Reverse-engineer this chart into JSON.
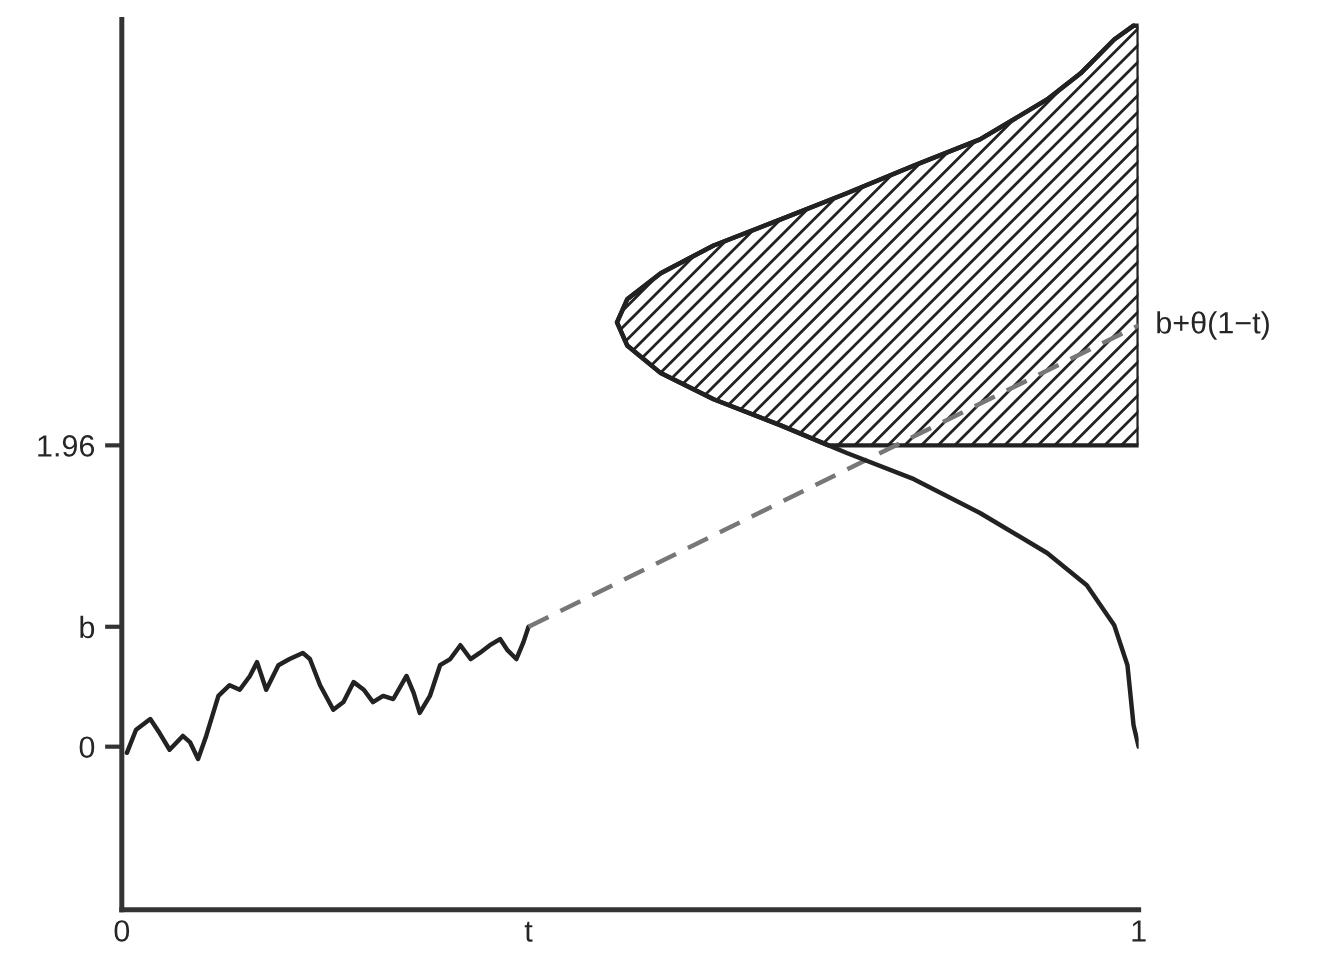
{
  "chart_data": {
    "type": "line",
    "xlim": [
      0,
      1
    ],
    "ylim": [
      -1.06,
      4.73
    ],
    "xticks": [
      0,
      {
        "value": 0.4,
        "label": "t"
      },
      1
    ],
    "yticks": [
      0,
      {
        "value": 0.78,
        "label": "b"
      },
      1.96
    ],
    "grid": false,
    "legend": false,
    "marker": "none",
    "annotations": [
      {
        "text": "b+θ(1−t)",
        "x": 1,
        "y": 2.74
      }
    ],
    "series": [
      {
        "color": "#222222",
        "line_style": "solid",
        "x": [
          0.005,
          0.014,
          0.028,
          0.037,
          0.047,
          0.06,
          0.067,
          0.075,
          0.083,
          0.095,
          0.106,
          0.116,
          0.126,
          0.133,
          0.142,
          0.154,
          0.165,
          0.178,
          0.185,
          0.195,
          0.208,
          0.218,
          0.228,
          0.238,
          0.247,
          0.257,
          0.267,
          0.28,
          0.287,
          0.293,
          0.303,
          0.313,
          0.323,
          0.333,
          0.343,
          0.352,
          0.362,
          0.372,
          0.379,
          0.388,
          0.395,
          0.4
        ],
        "values": [
          -0.04,
          0.11,
          0.18,
          0.09,
          -0.02,
          0.07,
          0.03,
          -0.08,
          0.07,
          0.33,
          0.4,
          0.37,
          0.46,
          0.55,
          0.37,
          0.53,
          0.57,
          0.61,
          0.57,
          0.4,
          0.24,
          0.29,
          0.42,
          0.37,
          0.29,
          0.33,
          0.31,
          0.46,
          0.35,
          0.22,
          0.33,
          0.53,
          0.57,
          0.66,
          0.57,
          0.61,
          0.66,
          0.7,
          0.63,
          0.57,
          0.68,
          0.78
        ]
      },
      {
        "color": "#777777",
        "line_style": "dashed",
        "x": [
          0.4,
          1
        ],
        "values": [
          0.78,
          2.74
        ]
      },
      {
        "type": "area",
        "color": "#222222",
        "x": [
          0.695,
          0.648,
          0.582,
          0.53,
          0.497,
          0.487,
          0.497,
          0.53,
          0.582,
          0.648,
          0.713,
          0.779,
          0.844,
          0.91,
          0.943,
          0.976,
          0.995,
          1.0,
          1.0
        ],
        "values": [
          1.96,
          2.09,
          2.26,
          2.43,
          2.61,
          2.76,
          2.91,
          3.08,
          3.26,
          3.43,
          3.6,
          3.78,
          3.95,
          4.21,
          4.38,
          4.6,
          4.69,
          4.69,
          1.96
        ]
      },
      {
        "color": "#222222",
        "line_style": "solid",
        "x": [
          0.995,
          0.976,
          0.943,
          0.91,
          0.844,
          0.779,
          0.713,
          0.648,
          0.582,
          0.53,
          0.497,
          0.487,
          0.497,
          0.53,
          0.582,
          0.648,
          0.713,
          0.779,
          0.844,
          0.91,
          0.949,
          0.976,
          0.989,
          0.995,
          1.0
        ],
        "values": [
          4.69,
          4.6,
          4.38,
          4.21,
          3.95,
          3.78,
          3.6,
          3.43,
          3.26,
          3.08,
          2.91,
          2.76,
          2.61,
          2.43,
          2.26,
          2.09,
          1.91,
          1.74,
          1.52,
          1.26,
          1.05,
          0.79,
          0.53,
          0.14,
          0.0
        ]
      }
    ]
  }
}
